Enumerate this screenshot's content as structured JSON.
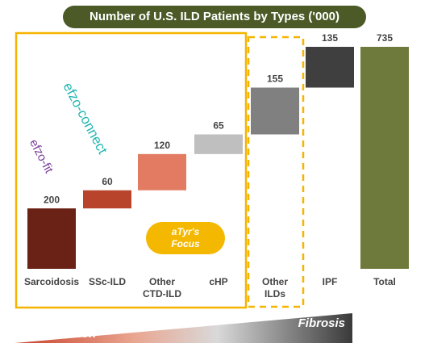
{
  "chart_data": {
    "type": "waterfall",
    "title": "Number of U.S. ILD Patients by Types ('000)",
    "categories": [
      "Sarcoidosis",
      "SSc-ILD",
      "Other CTD-ILD",
      "cHP",
      "Other ILDs",
      "IPF",
      "Total"
    ],
    "values": [
      200,
      60,
      120,
      65,
      155,
      135,
      735
    ],
    "colors": [
      "#6b2216",
      "#b8452b",
      "#e27b62",
      "#bfbfbf",
      "#808080",
      "#3f3f3f",
      "#6e7a3b"
    ],
    "focus_label": "aTyr's Focus",
    "logos": [
      "efzo-connect",
      "efzo-fit"
    ],
    "gradient_labels": [
      "Inflammation",
      "Fibrosis"
    ]
  }
}
